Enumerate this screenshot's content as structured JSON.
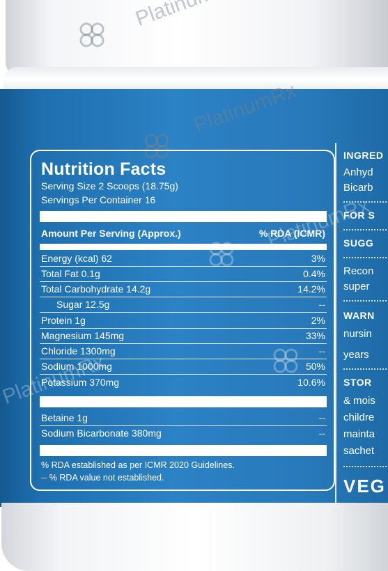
{
  "watermark": {
    "text": "PlatinumRx"
  },
  "nutrition": {
    "title": "Nutrition Facts",
    "serving_size": "Serving Size 2 Scoops (18.75g)",
    "servings_per_container": "Servings Per Container 16",
    "col_amount": "Amount Per Serving (Approx.)",
    "col_rda": "% RDA (ICMR)",
    "rows": [
      {
        "name": "Energy (kcal) 62",
        "rda": "3%"
      },
      {
        "name": "Total Fat 0.1g",
        "rda": "0.4%"
      },
      {
        "name": "Total Carbohydrate 14.2g",
        "rda": "14.2%"
      },
      {
        "name": "Sugar 12.5g",
        "rda": "--"
      },
      {
        "name": "Protein 1g",
        "rda": "2%"
      },
      {
        "name": "Magnesium 145mg",
        "rda": "33%"
      },
      {
        "name": "Chloride 1300mg",
        "rda": "--"
      },
      {
        "name": "Sodium 1000mg",
        "rda": "50%"
      },
      {
        "name": "Potassium 370mg",
        "rda": "10.6%"
      }
    ],
    "extra_rows": [
      {
        "name": "Betaine 1g",
        "rda": "--"
      },
      {
        "name": "Sodium Bicarbonate 380mg",
        "rda": "--"
      }
    ],
    "footnote_1": "% RDA established as per ICMR 2020 Guidelines.",
    "footnote_2": "-- % RDA value not established."
  },
  "side_panel": {
    "ingredients_heading": "INGRED",
    "ingredients_line_1": "Anhyd",
    "ingredients_line_2": "Bicarb",
    "for_heading": "FOR S",
    "suggested_heading": "SUGG",
    "suggested_line_1": "Recon",
    "suggested_line_2": "super",
    "warning_heading": "WARN",
    "warning_line_1": "nursin",
    "warning_line_2": "years",
    "storage_heading": "STOR",
    "storage_line_1": "& mois",
    "storage_line_2": "childre",
    "storage_line_3": "mainta",
    "storage_line_4": "sachet",
    "veg": "VEG"
  },
  "colors": {
    "label_blue": "#2879ba",
    "text": "#ffffff",
    "lid": "#f4f5f7"
  }
}
